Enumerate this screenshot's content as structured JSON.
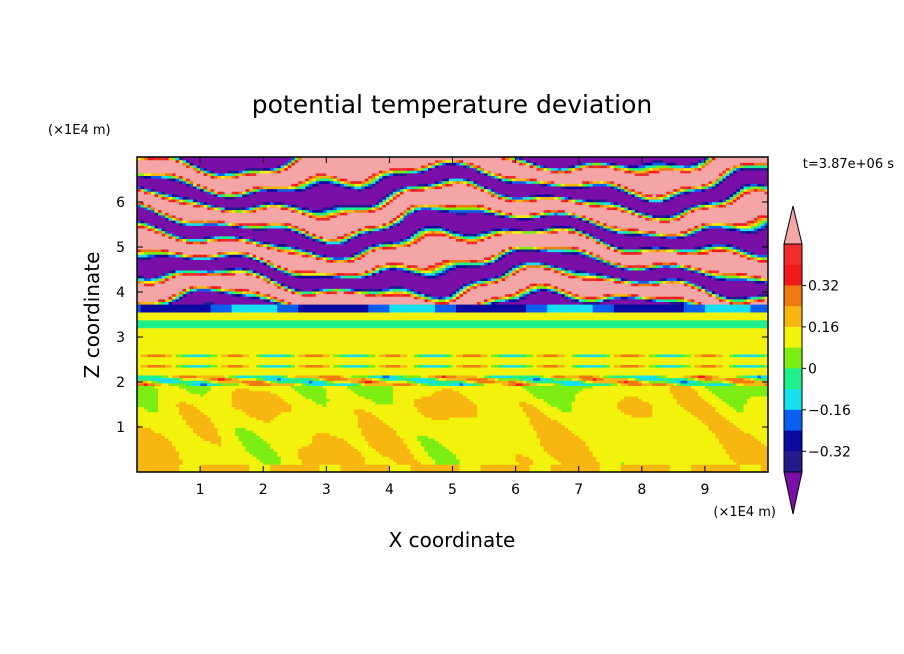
{
  "chart_data": {
    "type": "heatmap",
    "title": "potential temperature deviation",
    "xlabel": "X coordinate",
    "ylabel": "Z coordinate",
    "x_unit": "(×1E4 m)",
    "y_unit": "(×1E4 m)",
    "time_label": "t=3.87e+06 s",
    "xlim": [
      0,
      10
    ],
    "ylim": [
      0,
      7
    ],
    "x_ticks": [
      1,
      2,
      3,
      4,
      5,
      6,
      7,
      8,
      9
    ],
    "y_ticks": [
      1,
      2,
      3,
      4,
      5,
      6
    ],
    "colorbar": {
      "levels": [
        -0.48,
        -0.4,
        -0.32,
        -0.24,
        -0.16,
        -0.08,
        0,
        0.08,
        0.16,
        0.24,
        0.32,
        0.4,
        0.48
      ],
      "colors": [
        "#7a0fa8",
        "#241a8c",
        "#0a0aa0",
        "#0b5ff0",
        "#16e0ee",
        "#1ff08c",
        "#7dee13",
        "#f2f20c",
        "#f8b610",
        "#f07a10",
        "#f01a1a",
        "#f02c2c",
        "#f4a6a6"
      ],
      "tick_labels": [
        "0.32",
        "0.16",
        "0",
        "-0.16",
        "-0.32"
      ],
      "tick_values": [
        0.32,
        0.16,
        0,
        -0.16,
        -0.32
      ]
    },
    "regions": {
      "boundary_layer": "alternating green (0 to 0.08) and light-green (0.08 to 0.16) convective cells below z=2",
      "inversion": "thin red/blue band near z=2",
      "stable_layer": "green (0 to 0.08) between z=2.1 and z=3.5 with cyan strip near z=3.3",
      "upper_layer": "alternating pink (>0.4) and purple (<-0.4) layers from z=3.7 to z=7"
    }
  }
}
